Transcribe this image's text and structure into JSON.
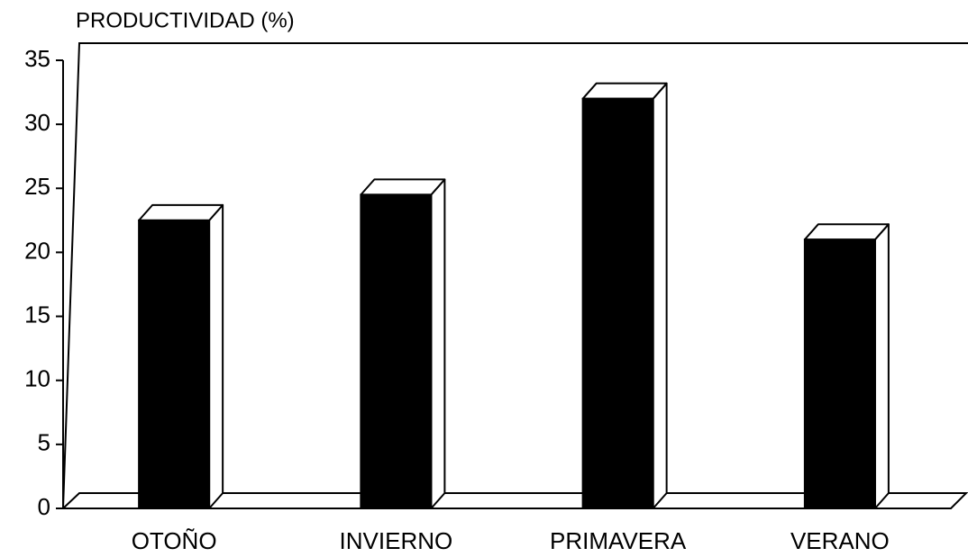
{
  "chart_data": {
    "type": "bar3d",
    "title": "PRODUCTIVIDAD (%)",
    "categories": [
      "OTOÑO",
      "INVIERNO",
      "PRIMAVERA",
      "VERANO"
    ],
    "values": [
      22.5,
      24.5,
      32,
      21
    ],
    "color": "#000000",
    "ylim": [
      0,
      35
    ],
    "yticks": [
      0,
      5,
      10,
      15,
      20,
      25,
      30,
      35
    ],
    "grid": false
  }
}
